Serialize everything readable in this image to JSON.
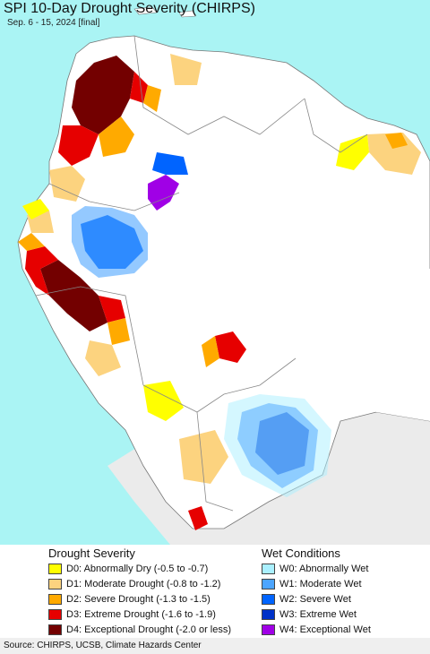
{
  "title": "SPI 10-Day Drought Severity (CHIRPS)",
  "subtitle": "Sep. 6 - 15, 2024 [final]",
  "legend": {
    "drought": {
      "heading": "Drought Severity",
      "items": [
        {
          "label": "D0: Abnormally Dry (-0.5 to -0.7)",
          "color": "#ffff00"
        },
        {
          "label": "D1: Moderate Drought (-0.8 to -1.2)",
          "color": "#fcd37f"
        },
        {
          "label": "D2: Severe Drought (-1.3 to -1.5)",
          "color": "#ffaa00"
        },
        {
          "label": "D3: Extreme Drought (-1.6 to -1.9)",
          "color": "#e60000"
        },
        {
          "label": "D4: Exceptional Drought (-2.0 or less)",
          "color": "#730000"
        }
      ]
    },
    "wet": {
      "heading": "Wet Conditions",
      "items": [
        {
          "label": "W0: Abnormally Wet",
          "color": "#aaf0ff"
        },
        {
          "label": "W1: Moderate Wet",
          "color": "#4ca5ff"
        },
        {
          "label": "W2: Severe Wet",
          "color": "#0064ff"
        },
        {
          "label": "W3: Extreme Wet",
          "color": "#0032c8"
        },
        {
          "label": "W4: Exceptional Wet",
          "color": "#a000e6"
        }
      ]
    }
  },
  "source": "Source: CHIRPS, UCSB, Climate Hazards Center",
  "colors": {
    "ocean": "#aaf4f4",
    "land": "#ffffff",
    "outside_region": "#ebebeb",
    "border": "#888888"
  }
}
